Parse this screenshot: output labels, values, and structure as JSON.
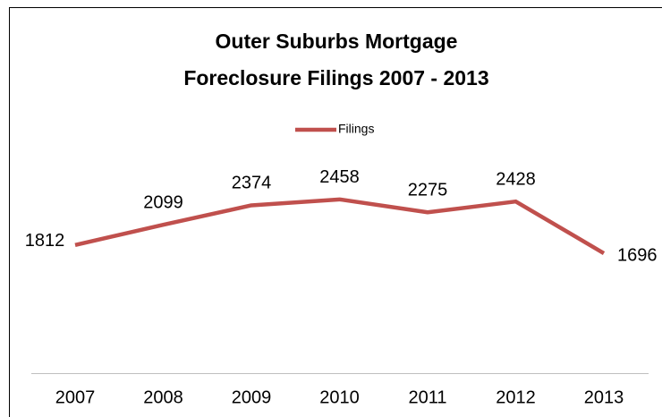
{
  "chart_data": {
    "type": "line",
    "title": "Outer Suburbs Mortgage",
    "subtitle": "Foreclosure Filings  2007 - 2013",
    "categories": [
      "2007",
      "2008",
      "2009",
      "2010",
      "2011",
      "2012",
      "2013"
    ],
    "series": [
      {
        "name": "Filings",
        "color": "#c0504d",
        "values": [
          1812,
          2099,
          2374,
          2458,
          2275,
          2428,
          1696
        ]
      }
    ],
    "ylim": [
      0,
      3000
    ],
    "legend": "top"
  }
}
